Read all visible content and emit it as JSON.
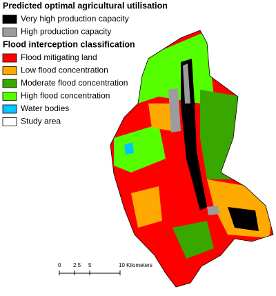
{
  "legend": {
    "groups": [
      {
        "title": "Predicted optimal agricultural utilisation",
        "items": [
          {
            "label": "Very high production capacity",
            "color": "#000000"
          },
          {
            "label": "High production capacity",
            "color": "#9c9c9c"
          }
        ]
      },
      {
        "title": "Flood interception classification",
        "items": [
          {
            "label": "Flood mitigating land",
            "color": "#ff0000"
          },
          {
            "label": "Low flood concentration",
            "color": "#ffaa00"
          },
          {
            "label": "Moderate flood concentration",
            "color": "#38a800"
          },
          {
            "label": "High flood concentration",
            "color": "#55ff00"
          },
          {
            "label": "Water bodies",
            "color": "#00c5ff"
          },
          {
            "label": "Study area",
            "color": "#ffffff"
          }
        ]
      }
    ]
  },
  "scale_bar": {
    "ticks": [
      {
        "value": 0,
        "label": "0"
      },
      {
        "value": 2.5,
        "label": "2.5"
      },
      {
        "value": 5,
        "label": "5"
      },
      {
        "value": 10,
        "label": "10 Kilometers"
      }
    ]
  }
}
